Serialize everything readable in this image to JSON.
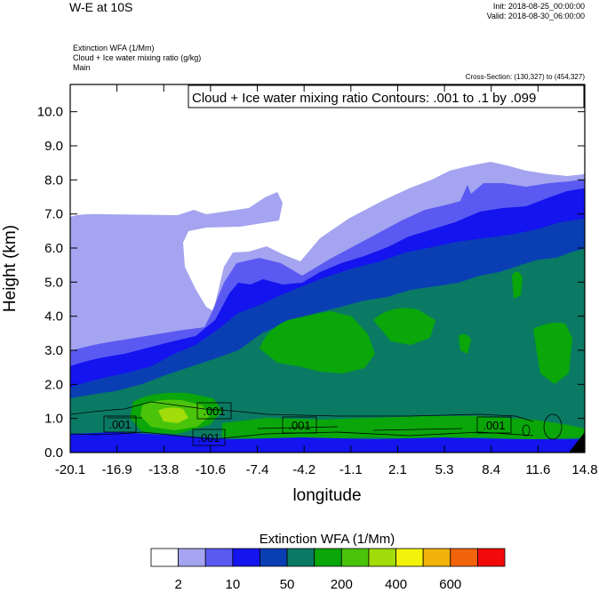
{
  "header": {
    "title": "W-E at 10S",
    "init": "Init: 2018-08-25_00:00:00",
    "valid": "Valid: 2018-08-30_06:00:00",
    "field1": "Extinction WFA   (1/Mm)",
    "field2": "Cloud + Ice water mixing ratio   (g/kg)",
    "field3": "Main",
    "cross_section": "Cross-Section: (130,327) to (454,327)"
  },
  "chart_data": {
    "type": "heatmap",
    "title": "Cloud + Ice water mixing ratio Contours: .001 to .1 by .099",
    "xlabel": "longitude",
    "ylabel": "Height (km)",
    "xlim": [
      -20.1,
      14.8
    ],
    "ylim": [
      0.0,
      10.8
    ],
    "x_ticks": [
      "-20.1",
      "-16.9",
      "-13.8",
      "-10.6",
      "-7.4",
      "-4.2",
      "-1.1",
      "2.1",
      "5.3",
      "8.4",
      "11.6",
      "14.8"
    ],
    "y_ticks": [
      "0.0",
      "1.0",
      "2.0",
      "3.0",
      "4.0",
      "5.0",
      "6.0",
      "7.0",
      "8.0",
      "9.0",
      "10.0"
    ],
    "contour_labels": [
      ".001",
      ".001",
      ".001",
      ".001",
      ".001"
    ],
    "colorbar": {
      "title": "Extinction WFA  (1/Mm)",
      "tick_labels": [
        "2",
        "10",
        "50",
        "200",
        "400",
        "600"
      ],
      "colors": [
        "#ffffff",
        "#a4a4f0",
        "#5a5af2",
        "#1414ee",
        "#0a3fb4",
        "#0a7a64",
        "#0aa60a",
        "#4ac40a",
        "#a2dc0a",
        "#f2f20a",
        "#f2b40a",
        "#f2640a",
        "#f20a0a"
      ]
    }
  }
}
